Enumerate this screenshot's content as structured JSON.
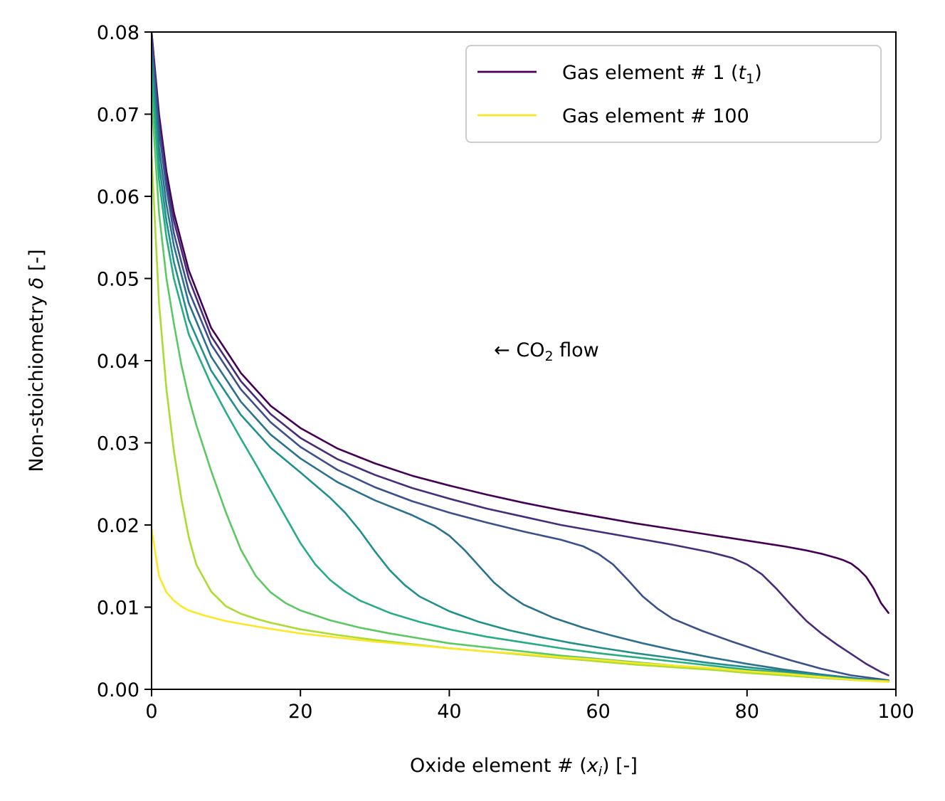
{
  "chart_data": {
    "type": "line",
    "xlabel": {
      "prefix": "Oxide element # (",
      "var": "x",
      "sub": "i",
      "suffix": ") [-]"
    },
    "ylabel": {
      "prefix": "Non-stoichiometry ",
      "var": "δ",
      "suffix": " [-]"
    },
    "xlim": [
      0,
      100
    ],
    "ylim": [
      0,
      0.08
    ],
    "xticks": [
      0,
      20,
      40,
      60,
      80,
      100
    ],
    "xtick_labels": [
      "0",
      "20",
      "40",
      "60",
      "80",
      "100"
    ],
    "yticks": [
      0,
      0.01,
      0.02,
      0.03,
      0.04,
      0.05,
      0.06,
      0.07,
      0.08
    ],
    "ytick_labels": [
      "0.00",
      "0.01",
      "0.02",
      "0.03",
      "0.04",
      "0.05",
      "0.06",
      "0.07",
      "0.08"
    ],
    "grid": false,
    "legend": {
      "position": "top-right",
      "entries": [
        {
          "prefix": "Gas element # 1 (",
          "var": "t",
          "sub": "1",
          "suffix": ")",
          "color": "#440154"
        },
        {
          "prefix": "Gas element # 100",
          "var": "",
          "sub": "",
          "suffix": "",
          "color": "#fde725"
        }
      ]
    },
    "annotation": {
      "text_before": "← CO",
      "sub": "2",
      "text_after": " flow",
      "x": 46,
      "y": 0.0405
    },
    "series": [
      {
        "color": "#440154",
        "x": [
          0,
          1,
          2,
          3,
          5,
          8,
          12,
          16,
          20,
          25,
          30,
          35,
          40,
          45,
          50,
          55,
          60,
          65,
          70,
          75,
          80,
          85,
          88,
          90,
          92,
          93,
          94,
          95,
          96,
          97,
          98,
          99
        ],
        "y": [
          0.08,
          0.07,
          0.063,
          0.058,
          0.051,
          0.044,
          0.0385,
          0.0345,
          0.0318,
          0.0293,
          0.0275,
          0.026,
          0.0248,
          0.0237,
          0.0227,
          0.0218,
          0.021,
          0.0202,
          0.0195,
          0.0188,
          0.0181,
          0.0174,
          0.0169,
          0.0165,
          0.016,
          0.0157,
          0.0153,
          0.0146,
          0.0137,
          0.0123,
          0.0105,
          0.0093
        ]
      },
      {
        "color": "#472c7a",
        "x": [
          0,
          1,
          2,
          3,
          5,
          8,
          12,
          16,
          20,
          25,
          30,
          35,
          40,
          45,
          50,
          55,
          60,
          65,
          70,
          75,
          78,
          80,
          82,
          84,
          86,
          88,
          90,
          92,
          94,
          96,
          98,
          99
        ],
        "y": [
          0.08,
          0.069,
          0.062,
          0.057,
          0.05,
          0.043,
          0.0375,
          0.0335,
          0.0306,
          0.028,
          0.0261,
          0.0245,
          0.0232,
          0.022,
          0.021,
          0.02,
          0.0192,
          0.0184,
          0.0176,
          0.0167,
          0.016,
          0.0152,
          0.014,
          0.0122,
          0.0102,
          0.0083,
          0.0068,
          0.0055,
          0.0043,
          0.0031,
          0.0021,
          0.0017
        ]
      },
      {
        "color": "#3b518b",
        "x": [
          0,
          1,
          2,
          3,
          5,
          8,
          12,
          16,
          20,
          25,
          30,
          35,
          40,
          45,
          50,
          55,
          58,
          60,
          62,
          64,
          66,
          68,
          70,
          74,
          78,
          82,
          86,
          90,
          94,
          99
        ],
        "y": [
          0.079,
          0.068,
          0.061,
          0.0555,
          0.0485,
          0.042,
          0.0365,
          0.0325,
          0.0295,
          0.0267,
          0.0246,
          0.0229,
          0.0215,
          0.0203,
          0.0192,
          0.0182,
          0.0174,
          0.0165,
          0.0152,
          0.0133,
          0.0113,
          0.0098,
          0.0086,
          0.0071,
          0.0058,
          0.0046,
          0.0035,
          0.0025,
          0.0017,
          0.0011
        ]
      },
      {
        "color": "#2c718e",
        "x": [
          0,
          1,
          2,
          3,
          5,
          8,
          12,
          16,
          20,
          25,
          30,
          35,
          38,
          40,
          42,
          44,
          46,
          48,
          50,
          54,
          58,
          62,
          66,
          70,
          75,
          80,
          85,
          90,
          95,
          99
        ],
        "y": [
          0.078,
          0.066,
          0.059,
          0.054,
          0.047,
          0.0405,
          0.035,
          0.031,
          0.0281,
          0.0252,
          0.023,
          0.0212,
          0.0199,
          0.0187,
          0.017,
          0.015,
          0.013,
          0.0115,
          0.0103,
          0.0087,
          0.0075,
          0.0065,
          0.0056,
          0.0048,
          0.0039,
          0.0031,
          0.0024,
          0.0018,
          0.0013,
          0.001
        ]
      },
      {
        "color": "#21908d",
        "x": [
          0,
          1,
          2,
          3,
          5,
          8,
          12,
          16,
          20,
          24,
          26,
          28,
          30,
          32,
          34,
          36,
          40,
          44,
          48,
          52,
          56,
          60,
          65,
          70,
          75,
          80,
          85,
          90,
          95,
          99
        ],
        "y": [
          0.077,
          0.064,
          0.057,
          0.052,
          0.045,
          0.0388,
          0.0334,
          0.0294,
          0.0264,
          0.0233,
          0.0215,
          0.0193,
          0.0168,
          0.0145,
          0.0127,
          0.0113,
          0.0095,
          0.0082,
          0.0072,
          0.0064,
          0.0057,
          0.0051,
          0.0044,
          0.0038,
          0.0032,
          0.0027,
          0.0022,
          0.0017,
          0.0012,
          0.001
        ]
      },
      {
        "color": "#27ad81",
        "x": [
          0,
          1,
          2,
          3,
          5,
          8,
          10,
          12,
          14,
          16,
          18,
          20,
          22,
          24,
          26,
          28,
          32,
          36,
          40,
          45,
          50,
          55,
          60,
          65,
          70,
          75,
          80,
          85,
          90,
          95,
          99
        ],
        "y": [
          0.075,
          0.062,
          0.055,
          0.05,
          0.0432,
          0.0371,
          0.0337,
          0.0305,
          0.0274,
          0.0242,
          0.021,
          0.0178,
          0.0152,
          0.0133,
          0.0119,
          0.0108,
          0.0093,
          0.0082,
          0.0073,
          0.0064,
          0.0057,
          0.005,
          0.0044,
          0.0039,
          0.0034,
          0.0029,
          0.0024,
          0.002,
          0.0016,
          0.0012,
          0.001
        ]
      },
      {
        "color": "#5cc863",
        "x": [
          0,
          1,
          2,
          3,
          4,
          5,
          6,
          8,
          10,
          12,
          14,
          16,
          18,
          20,
          24,
          28,
          32,
          36,
          40,
          45,
          50,
          55,
          60,
          65,
          70,
          75,
          80,
          85,
          90,
          95,
          99
        ],
        "y": [
          0.072,
          0.058,
          0.05,
          0.0445,
          0.0395,
          0.0355,
          0.0322,
          0.0266,
          0.0215,
          0.017,
          0.0138,
          0.0118,
          0.0105,
          0.0096,
          0.0084,
          0.0075,
          0.0068,
          0.0062,
          0.0056,
          0.0051,
          0.0046,
          0.0041,
          0.0037,
          0.0033,
          0.0029,
          0.0025,
          0.0021,
          0.0017,
          0.0014,
          0.0011,
          0.001
        ]
      },
      {
        "color": "#aadc32",
        "x": [
          0,
          1,
          2,
          3,
          4,
          5,
          6,
          8,
          10,
          12,
          14,
          16,
          20,
          25,
          30,
          35,
          40,
          45,
          50,
          55,
          60,
          65,
          70,
          75,
          80,
          85,
          90,
          95,
          99
        ],
        "y": [
          0.065,
          0.047,
          0.0365,
          0.029,
          0.0232,
          0.0185,
          0.0152,
          0.0119,
          0.0101,
          0.0092,
          0.0086,
          0.0081,
          0.0073,
          0.0066,
          0.006,
          0.0055,
          0.005,
          0.0046,
          0.0042,
          0.0038,
          0.0034,
          0.003,
          0.0027,
          0.0024,
          0.002,
          0.0017,
          0.0014,
          0.0011,
          0.001
        ]
      },
      {
        "color": "#fde725",
        "x": [
          0,
          1,
          2,
          3,
          4,
          5,
          7,
          10,
          15,
          20,
          25,
          30,
          35,
          40,
          45,
          50,
          55,
          60,
          65,
          70,
          75,
          80,
          85,
          90,
          95,
          99
        ],
        "y": [
          0.0195,
          0.0138,
          0.0118,
          0.0108,
          0.0101,
          0.0096,
          0.009,
          0.0083,
          0.0075,
          0.0068,
          0.0063,
          0.0058,
          0.0054,
          0.005,
          0.0046,
          0.0043,
          0.0039,
          0.0036,
          0.0032,
          0.0029,
          0.0026,
          0.0022,
          0.0019,
          0.0015,
          0.0011,
          0.0009
        ]
      }
    ]
  }
}
